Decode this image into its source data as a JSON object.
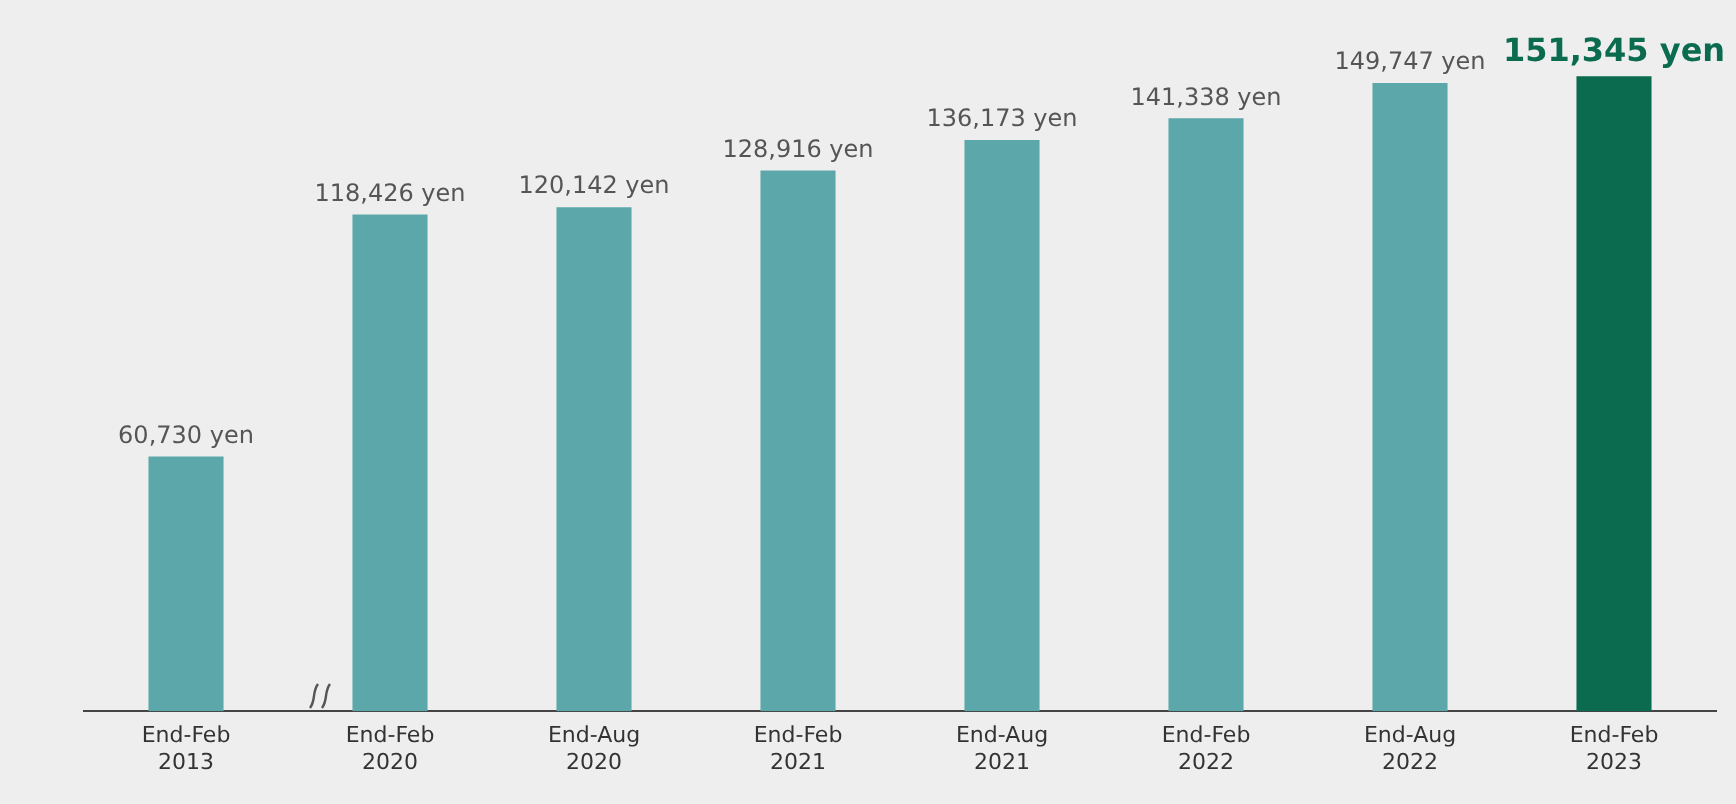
{
  "chart_data": {
    "type": "bar",
    "categories": [
      "End-Feb 2013",
      "End-Feb 2020",
      "End-Aug 2020",
      "End-Feb 2021",
      "End-Aug 2021",
      "End-Feb 2022",
      "End-Aug 2022",
      "End-Feb 2023"
    ],
    "values": [
      60730,
      118426,
      120142,
      128916,
      136173,
      141338,
      149747,
      151345
    ],
    "colors": [
      "#5ca7a9",
      "#5ca7a9",
      "#5ca7a9",
      "#5ca7a9",
      "#5ca7a9",
      "#5ca7a9",
      "#5ca7a9",
      "#0b6b4e"
    ],
    "value_labels": [
      "60,730 yen",
      "118,426 yen",
      "120,142 yen",
      "128,916 yen",
      "136,173 yen",
      "141,338 yen",
      "149,747 yen",
      "151,345 yen"
    ],
    "tick_labels": "x",
    "grid": false,
    "legend": false
  }
}
